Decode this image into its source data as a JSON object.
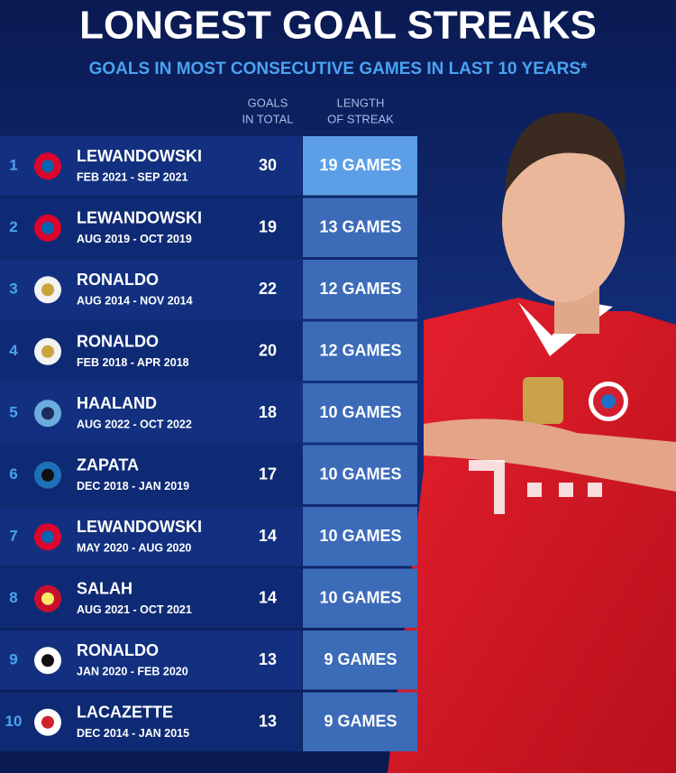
{
  "header": {
    "title": "LONGEST GOAL STREAKS",
    "subtitle": "GOALS IN MOST CONSECUTIVE GAMES IN LAST 10 YEARS*"
  },
  "table": {
    "columns": {
      "goals": [
        "GOALS",
        "IN TOTAL"
      ],
      "streak": [
        "LENGTH",
        "OF STREAK"
      ]
    },
    "rows": [
      {
        "rank": 1,
        "player": "LEWANDOWSKI",
        "period": "FEB 2021 - SEP 2021",
        "goals": 30,
        "streak": "19 GAMES"
      },
      {
        "rank": 2,
        "player": "LEWANDOWSKI",
        "period": "AUG 2019 - OCT 2019",
        "goals": 19,
        "streak": "13 GAMES"
      },
      {
        "rank": 3,
        "player": "RONALDO",
        "period": "AUG 2014 - NOV 2014",
        "goals": 22,
        "streak": "12 GAMES"
      },
      {
        "rank": 4,
        "player": "RONALDO",
        "period": "FEB 2018 - APR 2018",
        "goals": 20,
        "streak": "12 GAMES"
      },
      {
        "rank": 5,
        "player": "HAALAND",
        "period": "AUG 2022 - OCT 2022",
        "goals": 18,
        "streak": "10 GAMES"
      },
      {
        "rank": 6,
        "player": "ZAPATA",
        "period": "DEC 2018 - JAN 2019",
        "goals": 17,
        "streak": "10 GAMES"
      },
      {
        "rank": 7,
        "player": "LEWANDOWSKI",
        "period": "MAY 2020 - AUG 2020",
        "goals": 14,
        "streak": "10 GAMES"
      },
      {
        "rank": 8,
        "player": "SALAH",
        "period": "AUG 2021 - OCT 2021",
        "goals": 14,
        "streak": "10 GAMES"
      },
      {
        "rank": 9,
        "player": "RONALDO",
        "period": "JAN 2020 - FEB 2020",
        "goals": 13,
        "streak": "9 GAMES"
      },
      {
        "rank": 10,
        "player": "LACAZETTE",
        "period": "DEC 2014 - JAN 2015",
        "goals": 13,
        "streak": "9 GAMES"
      }
    ]
  }
}
